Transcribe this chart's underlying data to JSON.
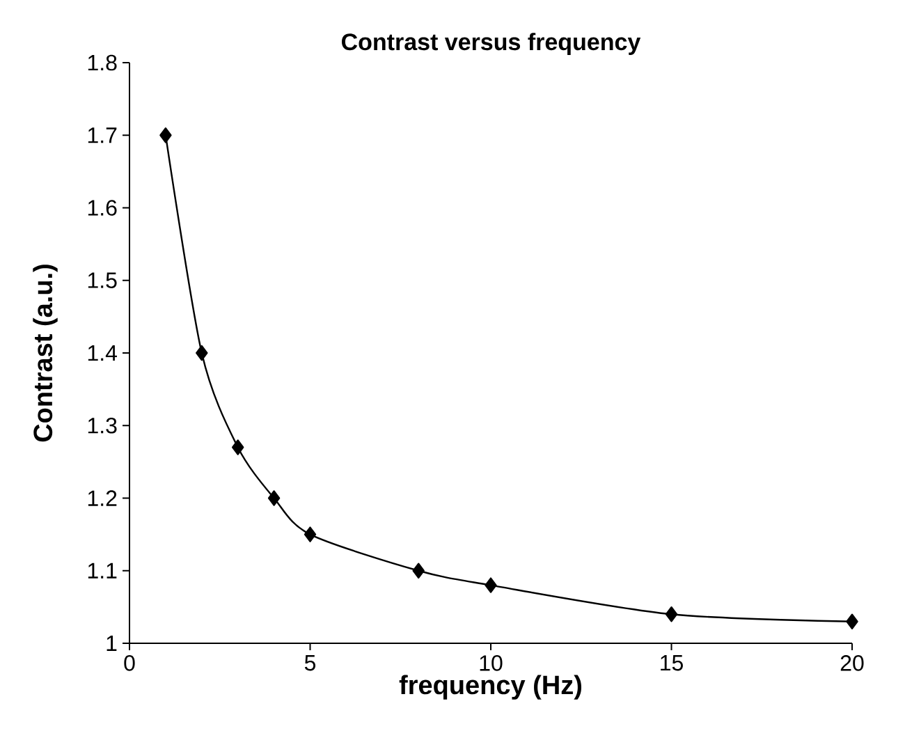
{
  "chart_data": {
    "type": "line",
    "title": "Contrast versus frequency",
    "xlabel": "frequency (Hz)",
    "ylabel": "Contrast (a.u.)",
    "x": [
      1,
      2,
      3,
      4,
      5,
      8,
      10,
      15,
      20
    ],
    "series": [
      {
        "color": "#000000",
        "values": [
          1.7,
          1.4,
          1.27,
          1.2,
          1.15,
          1.1,
          1.08,
          1.04,
          1.03
        ]
      }
    ],
    "xlim": [
      0,
      20
    ],
    "xticks": [
      0,
      5,
      10,
      15,
      20
    ],
    "ylim": [
      1,
      1.8
    ],
    "yticks": [
      1,
      1.1,
      1.2,
      1.3,
      1.4,
      1.5,
      1.6,
      1.7,
      1.8
    ],
    "marker": "diamond",
    "line_style": "solid"
  }
}
